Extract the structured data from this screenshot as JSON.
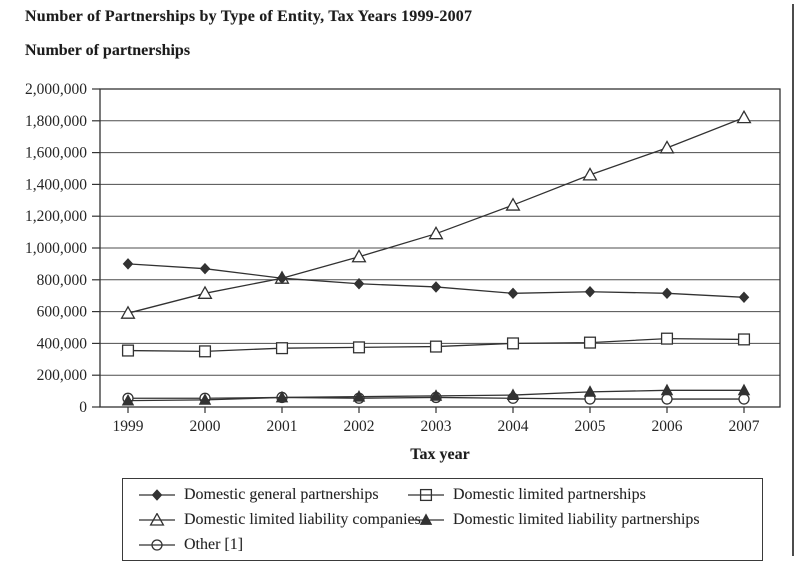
{
  "title": "Number of Partnerships by Type of Entity, Tax Years 1999-2007",
  "subtitle": "Number of partnerships",
  "colors": {
    "ink": "#323232",
    "grid": "#4d4d4d",
    "text": "#262626",
    "background": "#ffffff",
    "open_marker_fill": "#ffffff"
  },
  "chart_data": {
    "type": "line",
    "title": "Number of Partnerships by Type of Entity, Tax Years 1999-2007",
    "ylabel": "Number of partnerships",
    "xlabel": "Tax year",
    "categories": [
      "1999",
      "2000",
      "2001",
      "2002",
      "2003",
      "2004",
      "2005",
      "2006",
      "2007"
    ],
    "ylim": [
      0,
      2000000
    ],
    "ytick_interval": 200000,
    "ytick_labels": [
      "0",
      "200,000",
      "400,000",
      "600,000",
      "800,000",
      "1,000,000",
      "1,200,000",
      "1,400,000",
      "1,600,000",
      "1,800,000",
      "2,000,000"
    ],
    "grid": "horizontal",
    "legend_position": "bottom-box",
    "series": [
      {
        "name": "Domestic general partnerships",
        "marker": "diamond-filled",
        "values": [
          900000,
          870000,
          810000,
          775000,
          755000,
          715000,
          725000,
          715000,
          690000
        ]
      },
      {
        "name": "Domestic limited partnerships",
        "marker": "square-open",
        "values": [
          355000,
          350000,
          370000,
          375000,
          380000,
          400000,
          405000,
          430000,
          425000
        ]
      },
      {
        "name": "Domestic limited liability companies",
        "marker": "triangle-open",
        "values": [
          590000,
          715000,
          810000,
          945000,
          1090000,
          1270000,
          1460000,
          1630000,
          1820000
        ]
      },
      {
        "name": "Domestic limited liability partnerships",
        "marker": "triangle-filled",
        "values": [
          40000,
          45000,
          60000,
          65000,
          70000,
          75000,
          95000,
          105000,
          105000
        ]
      },
      {
        "name": "Other [1]",
        "marker": "circle-open",
        "values": [
          55000,
          55000,
          60000,
          55000,
          60000,
          55000,
          50000,
          50000,
          50000
        ]
      }
    ]
  },
  "legend": {
    "columns": [
      [
        0,
        2,
        4
      ],
      [
        1,
        3
      ]
    ]
  }
}
